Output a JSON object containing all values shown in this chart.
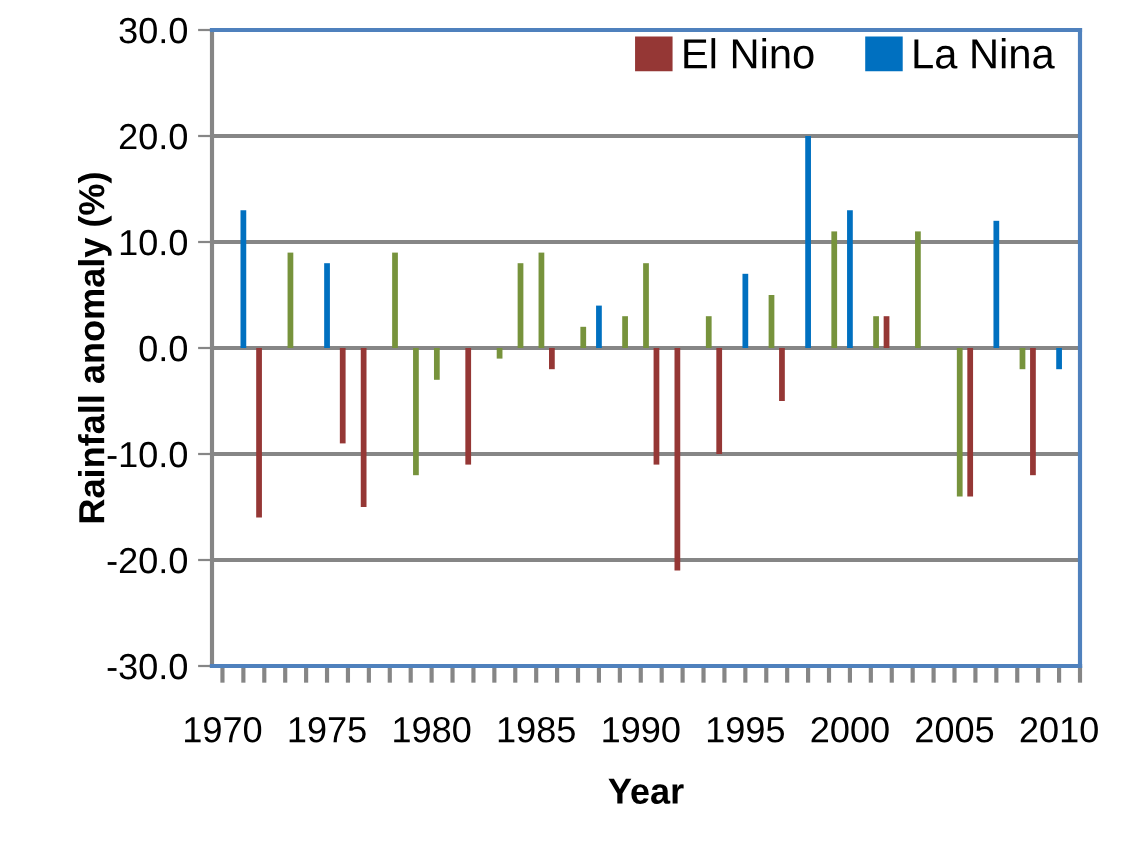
{
  "chart_data": {
    "type": "bar",
    "xlabel": "Year",
    "ylabel": "Rainfall anomaly (%)",
    "series": [
      {
        "name": "El Nino",
        "color": "#953735",
        "x": [
          1972,
          1976,
          1977,
          1982,
          1986,
          1991,
          1992,
          1994,
          1997,
          2002,
          2006,
          2009
        ],
        "values": [
          -16,
          -9,
          -15,
          -11,
          -2,
          -11,
          -21,
          -10,
          -5,
          3,
          -14,
          -12
        ]
      },
      {
        "name": "La Nina",
        "color": "#0070c0",
        "x": [
          1971,
          1975,
          1988,
          1995,
          1998,
          2000,
          2007,
          2010
        ],
        "values": [
          13,
          8,
          4,
          7,
          20,
          13,
          12,
          -2
        ]
      },
      {
        "color": "#77933c",
        "x": [
          1973,
          1978,
          1979,
          1980,
          1983,
          1984,
          1985,
          1987,
          1989,
          1990,
          1993,
          1996,
          1999,
          2001,
          2003,
          2005,
          2008
        ],
        "values": [
          9,
          9,
          -12,
          -3,
          -1,
          8,
          9,
          2,
          3,
          8,
          3,
          5,
          11,
          3,
          11,
          -14,
          -2
        ]
      }
    ],
    "xlim": [
      1969.5,
      2011
    ],
    "xticks": [
      1970,
      1975,
      1980,
      1985,
      1990,
      1995,
      2000,
      2005,
      2010
    ],
    "ylim": [
      -30,
      30
    ],
    "yticks": [
      {
        "value": -30,
        "label": "-30.0"
      },
      {
        "value": -20,
        "label": "-20.0"
      },
      {
        "value": -10,
        "label": "-10.0"
      },
      {
        "value": 0,
        "label": "0.0"
      },
      {
        "value": 10,
        "label": "10.0"
      },
      {
        "value": 20,
        "label": "20.0"
      },
      {
        "value": 30,
        "label": "30.0"
      }
    ],
    "grid": "y",
    "legend": "top right"
  }
}
